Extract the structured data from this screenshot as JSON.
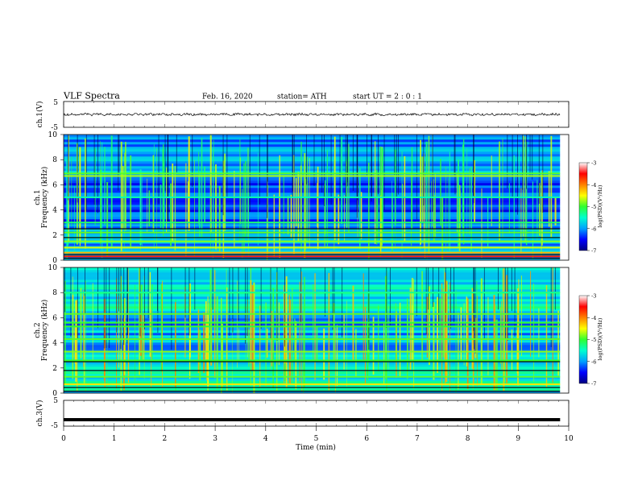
{
  "header": {
    "title": "VLF  Spectra",
    "date": "Feb. 16, 2020",
    "station": "station= ATH",
    "start": "start  UT  =    2  : 0   : 1"
  },
  "panels": {
    "ch1_wave": {
      "ylabel": "ch.1(V)",
      "ytick_top": "5",
      "ytick_bottom": "-5"
    },
    "ch1_spec": {
      "ylabel_line1": "ch.1",
      "ylabel_line2": "Frequency  (kHz)",
      "yticks": [
        "0",
        "2",
        "4",
        "6",
        "8",
        "10"
      ]
    },
    "ch2_spec": {
      "ylabel_line1": "ch.2",
      "ylabel_line2": "Frequency  (kHz)",
      "yticks": [
        "0",
        "2",
        "4",
        "6",
        "8",
        "10"
      ]
    },
    "ch3_wave": {
      "ylabel": "ch.3(V)",
      "ytick_top": "5",
      "ytick_bottom": "-5"
    }
  },
  "xaxis": {
    "label": "Time  (min)",
    "ticks": [
      "0",
      "1",
      "2",
      "3",
      "4",
      "5",
      "6",
      "7",
      "8",
      "9",
      "10"
    ]
  },
  "colorbar": {
    "label": "log(PSD)(V²/Hz)",
    "ticks": [
      "-3",
      "-4",
      "-5",
      "-6",
      "-7"
    ],
    "stops": [
      "#000080",
      "#0000ff",
      "#00a0ff",
      "#00ffd0",
      "#30ff30",
      "#ffff00",
      "#ff8000",
      "#ff0000",
      "#ffffff"
    ]
  },
  "chart_data": [
    {
      "type": "line",
      "name": "ch.1 waveform",
      "xlim": [
        0,
        10
      ],
      "ylim": [
        -5,
        5
      ],
      "x_range_data": [
        0,
        9.83
      ],
      "description_values": {
        "baseline_V": 0,
        "amplitude_V": 0.4
      }
    },
    {
      "type": "heatmap",
      "name": "ch.1 spectrogram",
      "x": "Time (min)",
      "xlim": [
        0,
        10
      ],
      "y": "Frequency (kHz)",
      "ylim": [
        0,
        10
      ],
      "zlim": [
        -7,
        -3
      ],
      "bands_kHz": [
        {
          "f": 0.3,
          "level": -3.6
        },
        {
          "f": 0.6,
          "level": -4.2
        },
        {
          "f": 1.0,
          "level": -4.6
        },
        {
          "f": 1.5,
          "level": -4.8
        },
        {
          "f": 2.2,
          "level": -4.9
        },
        {
          "f": 3.0,
          "level": -5.2
        },
        {
          "f": 5.0,
          "level": -5.4
        },
        {
          "f": 6.7,
          "level": -4.7
        },
        {
          "f": 6.9,
          "level": -4.9
        }
      ],
      "background_level": -6.0,
      "x_range_data": [
        0,
        9.83
      ]
    },
    {
      "type": "heatmap",
      "name": "ch.2 spectrogram",
      "x": "Time (min)",
      "xlim": [
        0,
        10
      ],
      "y": "Frequency (kHz)",
      "ylim": [
        0,
        10
      ],
      "zlim": [
        -7,
        -3
      ],
      "bands_kHz": [
        {
          "f": 0.7,
          "level": -4.4
        },
        {
          "f": 1.3,
          "level": -4.9
        },
        {
          "f": 2.6,
          "level": -5.0
        },
        {
          "f": 3.3,
          "level": -4.8
        },
        {
          "f": 4.3,
          "level": -4.9
        },
        {
          "f": 5.3,
          "level": -5.0
        },
        {
          "f": 5.6,
          "level": -5.0
        },
        {
          "f": 6.3,
          "level": -4.9
        },
        {
          "f": 8.0,
          "level": -5.3
        }
      ],
      "background_level": -5.6,
      "x_range_data": [
        0,
        9.83
      ]
    },
    {
      "type": "line",
      "name": "ch.3 waveform",
      "xlim": [
        0,
        10
      ],
      "ylim": [
        -5,
        5
      ],
      "x_range_data": [
        0,
        9.83
      ],
      "description_values": {
        "baseline_V": -2.5,
        "amplitude_V": 0.15
      }
    }
  ]
}
